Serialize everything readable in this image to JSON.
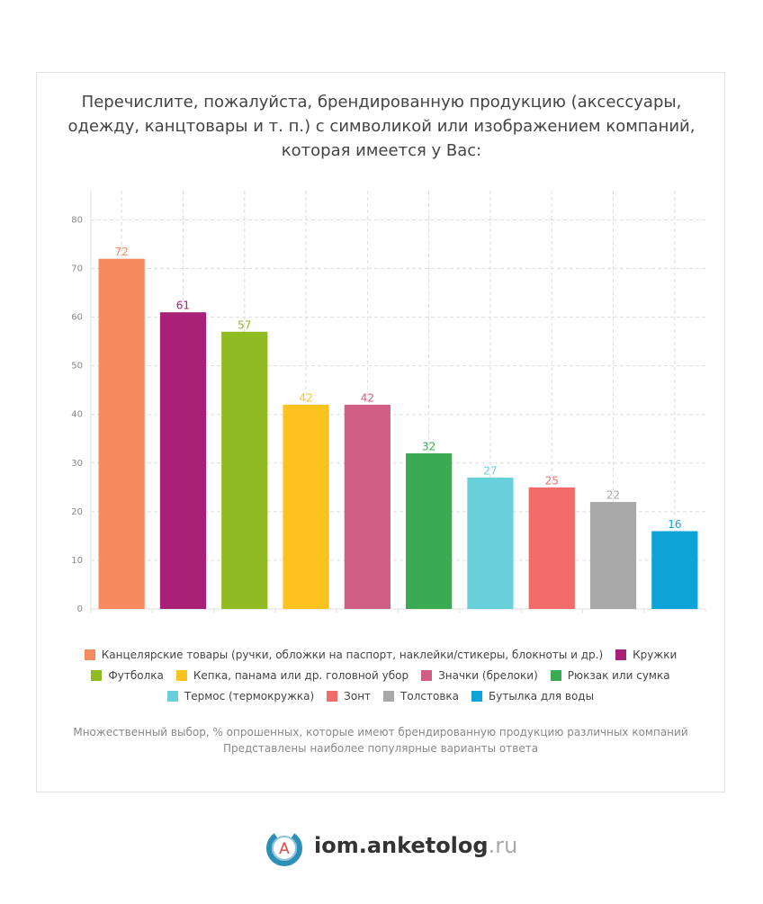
{
  "chart_data": {
    "type": "bar",
    "title": "Перечислите, пожалуйста, брендированную продукцию (аксессуары, одежду, канцтовары и т. п.) с символикой или изображением компаний, которая имеется у Вас:",
    "categories": [
      "Канцелярские товары (ручки, обложки на паспорт, наклейки/стикеры, блокноты и др.)",
      "Кружки",
      "Футболка",
      "Кепка, панама или др. головной убор",
      "Значки (брелоки)",
      "Рюкзак или сумка",
      "Термос (термокружка)",
      "Зонт",
      "Толстовка",
      "Бутылка для воды"
    ],
    "values": [
      72,
      61,
      57,
      42,
      42,
      32,
      27,
      25,
      22,
      16
    ],
    "colors": [
      "#f58b5f",
      "#a82177",
      "#8fba22",
      "#fbc220",
      "#d05e85",
      "#3aab52",
      "#67d0da",
      "#f26b6b",
      "#a8a8a8",
      "#0ea3d6"
    ],
    "ylim": [
      0,
      86
    ],
    "yticks": [
      0,
      10,
      20,
      30,
      40,
      50,
      60,
      70,
      80
    ],
    "grid": true,
    "notes": [
      "Множественный выбор, % опрошенных, которые имеют брендированную продукцию различных компаний",
      "Представлены наиболее популярные варианты ответа"
    ]
  },
  "logo": {
    "icon": "A",
    "name": "iom.anketolog",
    "suffix": ".ru"
  }
}
